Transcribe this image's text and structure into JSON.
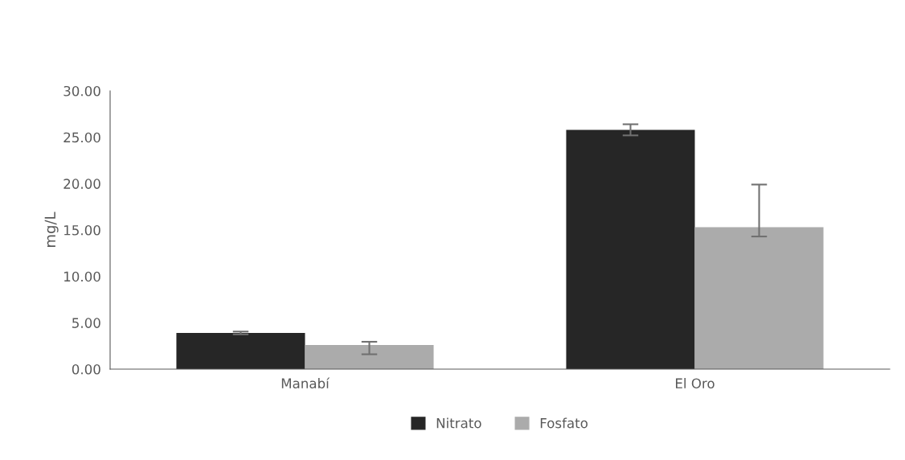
{
  "chart_data": {
    "type": "bar",
    "ylabel": "mg/L",
    "categories": [
      "Manabí",
      "El Oro"
    ],
    "series": [
      {
        "name": "Nitrato",
        "color": "#262626",
        "values": [
          3.9,
          25.8
        ],
        "errors": [
          0.15,
          0.6
        ]
      },
      {
        "name": "Fosfato",
        "color": "#ababab",
        "values": [
          2.6,
          15.3
        ],
        "errors": [
          [
            1.6,
            2.95
          ],
          [
            14.3,
            19.9
          ]
        ]
      }
    ],
    "ylim": [
      0,
      30
    ],
    "yticks": [
      {
        "value": 0,
        "label": "0.00"
      },
      {
        "value": 5,
        "label": "5.00"
      },
      {
        "value": 10,
        "label": "10.00"
      },
      {
        "value": 15,
        "label": "15.00"
      },
      {
        "value": 20,
        "label": "20.00"
      },
      {
        "value": 25,
        "label": "25.00"
      },
      {
        "value": 30,
        "label": "30.00"
      }
    ],
    "grid": false,
    "legend": "bottom"
  }
}
